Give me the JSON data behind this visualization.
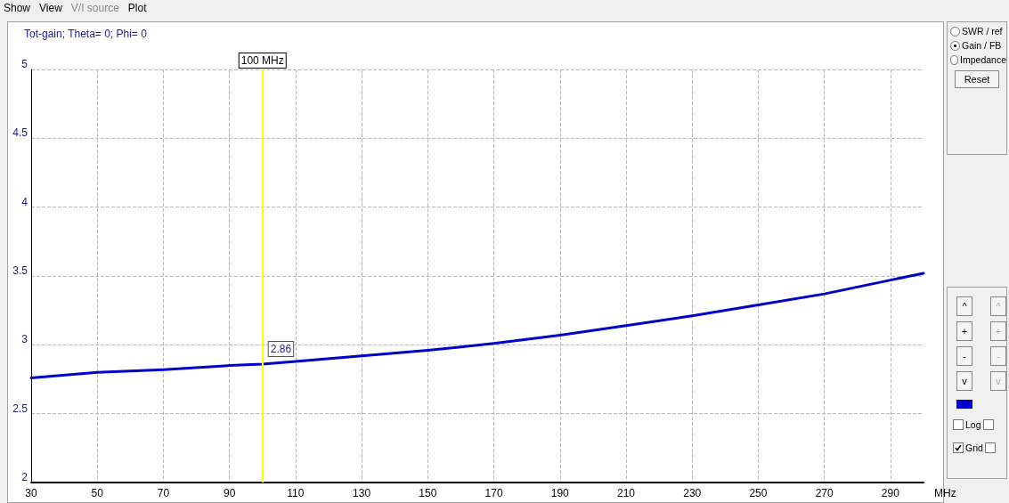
{
  "chart_data": {
    "type": "line",
    "title": "Tot-gain; Theta= 0; Phi= 0",
    "xlabel": "MHz",
    "x": [
      30,
      50,
      70,
      90,
      100,
      110,
      130,
      150,
      170,
      190,
      210,
      230,
      250,
      270,
      290,
      300
    ],
    "series": [
      {
        "color": "#0000cc",
        "values": [
          2.76,
          2.8,
          2.82,
          2.85,
          2.86,
          2.88,
          2.92,
          2.96,
          3.01,
          3.07,
          3.14,
          3.21,
          3.29,
          3.37,
          3.47,
          3.52
        ]
      }
    ],
    "xlim": [
      30,
      300
    ],
    "xticks": [
      30,
      50,
      70,
      90,
      110,
      130,
      150,
      170,
      190,
      210,
      230,
      250,
      270,
      290
    ],
    "ylim": [
      2,
      5
    ],
    "yticks": [
      2,
      2.5,
      3,
      3.5,
      4,
      4.5,
      5
    ],
    "grid": true,
    "marker": "none",
    "line_style": "solid",
    "ref_lines": [
      {
        "axis": "x",
        "value": 100,
        "label": "100 MHz",
        "color": "#ffff00"
      }
    ],
    "annotations": [
      {
        "text": "2.86",
        "x": 100,
        "y": 2.86
      },
      "Show",
      "View",
      "V/I source",
      "Plot",
      "SWR / ref",
      "Gain / FB",
      "Impedance",
      "Reset",
      "^",
      "+",
      "-",
      "v",
      "Log",
      "Grid"
    ]
  }
}
